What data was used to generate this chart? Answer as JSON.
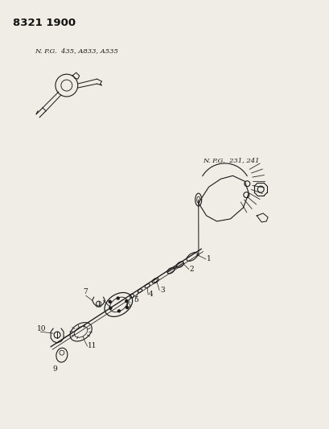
{
  "title": "8321 1900",
  "bg_color": "#f0ede6",
  "npg_label_top": "N. P.G.  435, A833, A535",
  "npg_label_right": "N. P.G.  231, 241",
  "fig_width": 4.1,
  "fig_height": 5.33,
  "dpi": 100,
  "lc": "#1a1a1a"
}
